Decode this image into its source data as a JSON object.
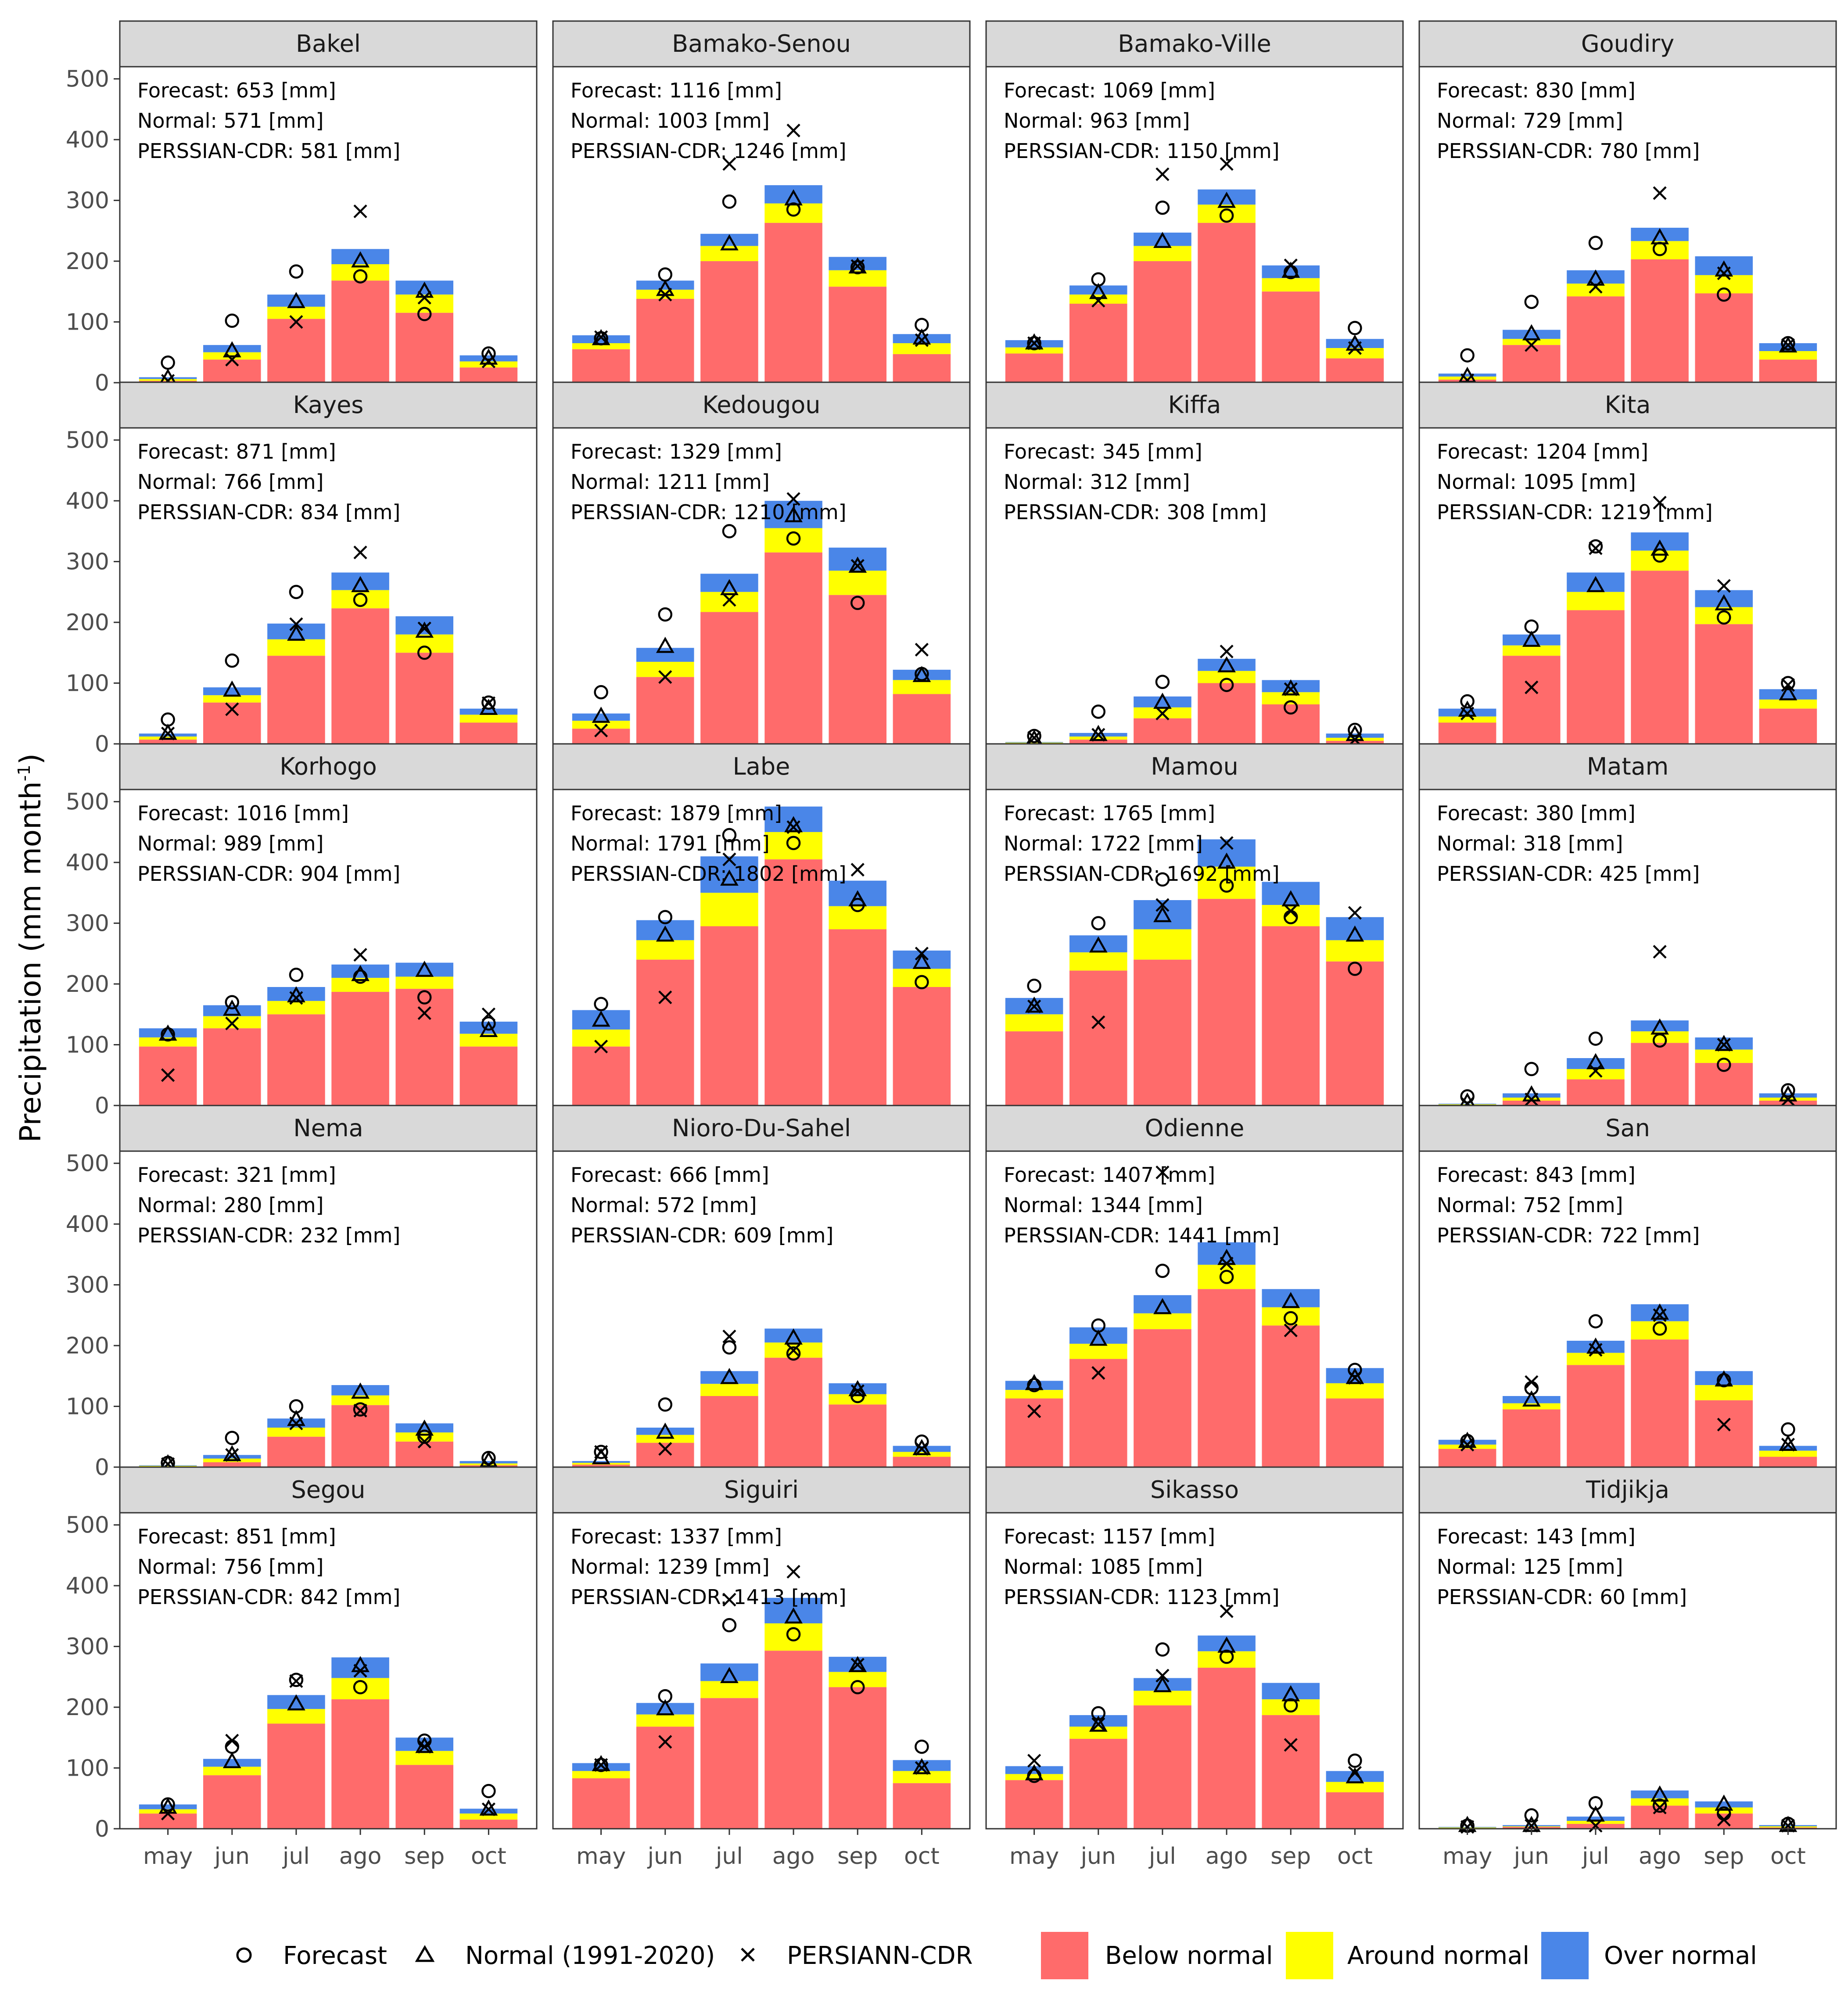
{
  "colors": {
    "below": "#FF6B6B",
    "around": "#FFFF00",
    "over": "#4A86E8",
    "strip_fill": "#D9D9D9",
    "panel_border": "#333333",
    "marker": "#000000"
  },
  "y_axis": {
    "title": "Precipitation (mm month",
    "title_superscript": "-1",
    "title_close": ")",
    "ticks": [
      "0",
      "100",
      "200",
      "300",
      "400",
      "500"
    ],
    "ylim": [
      0,
      520
    ]
  },
  "x_axis": {
    "ticks": [
      "may",
      "jun",
      "jul",
      "ago",
      "sep",
      "oct"
    ]
  },
  "legend": {
    "forecast_label": "Forecast",
    "normal_label": "Normal (1991-2020)",
    "persiann_label": "PERSIANN-CDR",
    "below_label": "Below normal",
    "around_label": "Around normal",
    "over_label": "Over normal"
  },
  "chart_data": {
    "type": "bar",
    "stacking": "stacked terciles (below/around/over) with point overlays (forecast, normal, PERSIANN-CDR)",
    "categories": [
      "may",
      "jun",
      "jul",
      "ago",
      "sep",
      "oct"
    ],
    "ylabel": "Precipitation (mm month-1)",
    "ylim": [
      0,
      520
    ],
    "panels": [
      {
        "station": "Bakel",
        "forecast_text": "Forecast: 653 [mm]",
        "normal_text": "Normal: 571 [mm]",
        "cdr_text": "PERSSIAN-CDR: 581 [mm]",
        "below": [
          3,
          38,
          105,
          168,
          115,
          25
        ],
        "around_top": [
          6,
          50,
          125,
          195,
          145,
          35
        ],
        "over_top": [
          9,
          62,
          145,
          220,
          168,
          45
        ],
        "forecast": [
          33,
          102,
          183,
          175,
          113,
          48
        ],
        "normal": [
          7,
          52,
          133,
          200,
          150,
          40
        ],
        "persiann": [
          3,
          38,
          100,
          282,
          140,
          35
        ]
      },
      {
        "station": "Bamako-Senou",
        "forecast_text": "Forecast: 1116 [mm]",
        "normal_text": "Normal: 1003 [mm]",
        "cdr_text": "PERSSIAN-CDR: 1246 [mm]",
        "below": [
          55,
          138,
          200,
          263,
          158,
          47
        ],
        "around_top": [
          65,
          153,
          225,
          295,
          185,
          65
        ],
        "over_top": [
          78,
          168,
          245,
          325,
          207,
          80
        ],
        "forecast": [
          73,
          178,
          298,
          285,
          190,
          95
        ],
        "normal": [
          72,
          153,
          228,
          302,
          190,
          73
        ],
        "persiann": [
          75,
          145,
          360,
          415,
          192,
          70
        ]
      },
      {
        "station": "Bamako-Ville",
        "forecast_text": "Forecast: 1069 [mm]",
        "normal_text": "Normal: 963 [mm]",
        "cdr_text": "PERSSIAN-CDR: 1150 [mm]",
        "below": [
          48,
          130,
          200,
          263,
          150,
          40
        ],
        "around_top": [
          58,
          145,
          225,
          293,
          172,
          57
        ],
        "over_top": [
          70,
          160,
          247,
          318,
          193,
          72
        ],
        "forecast": [
          65,
          170,
          288,
          275,
          182,
          90
        ],
        "normal": [
          65,
          148,
          232,
          298,
          183,
          63
        ],
        "persiann": [
          65,
          135,
          343,
          360,
          193,
          57
        ]
      },
      {
        "station": "Goudiry",
        "forecast_text": "Forecast: 830 [mm]",
        "normal_text": "Normal: 729 [mm]",
        "cdr_text": "PERSSIAN-CDR: 780 [mm]",
        "below": [
          5,
          62,
          142,
          203,
          147,
          38
        ],
        "around_top": [
          10,
          72,
          163,
          233,
          177,
          52
        ],
        "over_top": [
          15,
          87,
          185,
          255,
          208,
          65
        ],
        "forecast": [
          45,
          133,
          230,
          220,
          145,
          65
        ],
        "normal": [
          10,
          80,
          170,
          238,
          185,
          60
        ],
        "persiann": [
          4,
          62,
          158,
          312,
          180,
          62
        ]
      },
      {
        "station": "Kayes",
        "forecast_text": "Forecast: 871 [mm]",
        "normal_text": "Normal: 766 [mm]",
        "cdr_text": "PERSSIAN-CDR: 834 [mm]",
        "below": [
          7,
          68,
          145,
          223,
          150,
          35
        ],
        "around_top": [
          12,
          80,
          172,
          253,
          180,
          48
        ],
        "over_top": [
          17,
          93,
          198,
          282,
          210,
          58
        ],
        "forecast": [
          40,
          137,
          250,
          237,
          150,
          68
        ],
        "normal": [
          17,
          88,
          180,
          260,
          185,
          58
        ],
        "persiann": [
          17,
          57,
          197,
          315,
          190,
          67
        ]
      },
      {
        "station": "Kedougou",
        "forecast_text": "Forecast: 1329 [mm]",
        "normal_text": "Normal: 1211 [mm]",
        "cdr_text": "PERSSIAN-CDR: 1210 [mm]",
        "below": [
          25,
          110,
          217,
          315,
          245,
          82
        ],
        "around_top": [
          38,
          135,
          250,
          355,
          285,
          105
        ],
        "over_top": [
          50,
          158,
          280,
          400,
          323,
          122
        ],
        "forecast": [
          85,
          213,
          350,
          338,
          232,
          115
        ],
        "normal": [
          45,
          160,
          255,
          375,
          292,
          112
        ],
        "persiann": [
          22,
          110,
          237,
          403,
          293,
          155
        ]
      },
      {
        "station": "Kiffa",
        "forecast_text": "Forecast: 345 [mm]",
        "normal_text": "Normal: 312 [mm]",
        "cdr_text": "PERSSIAN-CDR: 308 [mm]",
        "below": [
          1,
          7,
          42,
          100,
          65,
          5
        ],
        "around_top": [
          2,
          12,
          60,
          120,
          85,
          10
        ],
        "over_top": [
          3,
          18,
          78,
          140,
          105,
          17
        ],
        "forecast": [
          13,
          53,
          102,
          97,
          60,
          23
        ],
        "normal": [
          7,
          15,
          68,
          128,
          90,
          15
        ],
        "persiann": [
          10,
          15,
          50,
          152,
          90,
          7
        ]
      },
      {
        "station": "Kita",
        "forecast_text": "Forecast: 1204 [mm]",
        "normal_text": "Normal: 1095 [mm]",
        "cdr_text": "PERSSIAN-CDR: 1219 [mm]",
        "below": [
          35,
          145,
          220,
          285,
          197,
          58
        ],
        "around_top": [
          45,
          162,
          250,
          318,
          225,
          73
        ],
        "over_top": [
          58,
          180,
          282,
          348,
          253,
          90
        ],
        "forecast": [
          70,
          193,
          325,
          310,
          208,
          100
        ],
        "normal": [
          55,
          170,
          260,
          320,
          230,
          82
        ],
        "persiann": [
          50,
          93,
          322,
          397,
          260,
          97
        ]
      },
      {
        "station": "Korhogo",
        "forecast_text": "Forecast: 1016 [mm]",
        "normal_text": "Normal: 989 [mm]",
        "cdr_text": "PERSSIAN-CDR: 904 [mm]",
        "below": [
          97,
          127,
          150,
          187,
          192,
          97
        ],
        "around_top": [
          112,
          147,
          172,
          210,
          212,
          118
        ],
        "over_top": [
          127,
          165,
          195,
          232,
          235,
          138
        ],
        "forecast": [
          117,
          170,
          215,
          212,
          178,
          135
        ],
        "normal": [
          117,
          158,
          180,
          215,
          222,
          123
        ],
        "persiann": [
          50,
          135,
          177,
          248,
          152,
          150
        ]
      },
      {
        "station": "Labe",
        "forecast_text": "Forecast: 1879 [mm]",
        "normal_text": "Normal: 1791 [mm]",
        "cdr_text": "PERSSIAN-CDR: 1802 [mm]",
        "below": [
          97,
          240,
          295,
          405,
          290,
          195
        ],
        "around_top": [
          125,
          272,
          350,
          450,
          328,
          225
        ],
        "over_top": [
          157,
          305,
          410,
          492,
          370,
          255
        ],
        "forecast": [
          167,
          310,
          445,
          432,
          330,
          203
        ],
        "normal": [
          140,
          280,
          372,
          460,
          338,
          235
        ],
        "persiann": [
          97,
          178,
          405,
          458,
          388,
          250
        ]
      },
      {
        "station": "Mamou",
        "forecast_text": "Forecast: 1765 [mm]",
        "normal_text": "Normal: 1722 [mm]",
        "cdr_text": "PERSSIAN-CDR: 1692 [mm]",
        "below": [
          122,
          222,
          240,
          340,
          295,
          237
        ],
        "around_top": [
          150,
          252,
          290,
          393,
          330,
          272
        ],
        "over_top": [
          177,
          280,
          338,
          438,
          368,
          310
        ],
        "forecast": [
          197,
          300,
          372,
          362,
          310,
          225
        ],
        "normal": [
          163,
          262,
          312,
          400,
          338,
          280
        ],
        "persiann": [
          163,
          137,
          330,
          432,
          320,
          317
        ]
      },
      {
        "station": "Matam",
        "forecast_text": "Forecast: 380 [mm]",
        "normal_text": "Normal: 318 [mm]",
        "cdr_text": "PERSSIAN-CDR: 425 [mm]",
        "below": [
          1,
          8,
          43,
          103,
          70,
          8
        ],
        "around_top": [
          2,
          13,
          60,
          122,
          92,
          13
        ],
        "over_top": [
          3,
          20,
          78,
          140,
          112,
          20
        ],
        "forecast": [
          15,
          60,
          110,
          107,
          67,
          25
        ],
        "normal": [
          5,
          17,
          70,
          127,
          100,
          17
        ],
        "persiann": [
          3,
          10,
          57,
          253,
          100,
          10
        ]
      },
      {
        "station": "Nema",
        "forecast_text": "Forecast: 321 [mm]",
        "normal_text": "Normal: 280 [mm]",
        "cdr_text": "PERSSIAN-CDR: 232 [mm]",
        "below": [
          1,
          8,
          50,
          102,
          42,
          3
        ],
        "around_top": [
          2,
          14,
          65,
          118,
          57,
          6
        ],
        "over_top": [
          3,
          20,
          80,
          135,
          72,
          10
        ],
        "forecast": [
          7,
          48,
          100,
          95,
          50,
          15
        ],
        "normal": [
          5,
          20,
          78,
          123,
          62,
          10
        ],
        "persiann": [
          5,
          20,
          72,
          93,
          42,
          3
        ]
      },
      {
        "station": "Nioro-Du-Sahel",
        "forecast_text": "Forecast: 666 [mm]",
        "normal_text": "Normal: 572 [mm]",
        "cdr_text": "PERSSIAN-CDR: 609 [mm]",
        "below": [
          4,
          40,
          117,
          180,
          103,
          17
        ],
        "around_top": [
          7,
          53,
          137,
          205,
          120,
          25
        ],
        "over_top": [
          10,
          65,
          158,
          228,
          138,
          35
        ],
        "forecast": [
          25,
          103,
          197,
          187,
          117,
          42
        ],
        "normal": [
          15,
          57,
          147,
          212,
          127,
          30
        ],
        "persiann": [
          25,
          30,
          215,
          192,
          125,
          30
        ]
      },
      {
        "station": "Odienne",
        "forecast_text": "Forecast: 1407 [mm]",
        "normal_text": "Normal: 1344 [mm]",
        "cdr_text": "PERSSIAN-CDR: 1441 [mm]",
        "below": [
          113,
          178,
          227,
          293,
          233,
          113
        ],
        "around_top": [
          127,
          203,
          253,
          333,
          263,
          138
        ],
        "over_top": [
          142,
          230,
          283,
          370,
          293,
          163
        ],
        "forecast": [
          135,
          233,
          323,
          313,
          245,
          160
        ],
        "normal": [
          137,
          210,
          262,
          343,
          272,
          147
        ],
        "persiann": [
          92,
          155,
          485,
          335,
          225,
          147
        ]
      },
      {
        "station": "San",
        "forecast_text": "Forecast: 843 [mm]",
        "normal_text": "Normal: 752 [mm]",
        "cdr_text": "PERSSIAN-CDR: 722 [mm]",
        "below": [
          30,
          95,
          168,
          210,
          110,
          17
        ],
        "around_top": [
          37,
          105,
          188,
          240,
          135,
          27
        ],
        "over_top": [
          45,
          117,
          208,
          268,
          158,
          35
        ],
        "forecast": [
          43,
          130,
          240,
          228,
          143,
          62
        ],
        "normal": [
          42,
          110,
          197,
          253,
          143,
          37
        ],
        "persiann": [
          37,
          140,
          193,
          250,
          70,
          37
        ]
      },
      {
        "station": "Segou",
        "forecast_text": "Forecast: 851 [mm]",
        "normal_text": "Normal: 756 [mm]",
        "cdr_text": "PERSSIAN-CDR: 842 [mm]",
        "below": [
          25,
          88,
          173,
          213,
          105,
          15
        ],
        "around_top": [
          32,
          102,
          197,
          248,
          128,
          25
        ],
        "over_top": [
          40,
          115,
          220,
          282,
          150,
          33
        ],
        "forecast": [
          40,
          135,
          245,
          233,
          145,
          62
        ],
        "normal": [
          35,
          110,
          205,
          268,
          135,
          32
        ],
        "persiann": [
          25,
          145,
          243,
          260,
          135,
          32
        ]
      },
      {
        "station": "Siguiri",
        "forecast_text": "Forecast: 1337 [mm]",
        "normal_text": "Normal: 1239 [mm]",
        "cdr_text": "PERSSIAN-CDR: 1413 [mm]",
        "below": [
          83,
          168,
          215,
          293,
          233,
          75
        ],
        "around_top": [
          95,
          188,
          243,
          338,
          258,
          95
        ],
        "over_top": [
          108,
          207,
          272,
          380,
          283,
          113
        ],
        "forecast": [
          105,
          218,
          335,
          320,
          233,
          135
        ],
        "normal": [
          105,
          197,
          250,
          348,
          268,
          100
        ],
        "persiann": [
          105,
          143,
          377,
          423,
          270,
          100
        ]
      },
      {
        "station": "Sikasso",
        "forecast_text": "Forecast: 1157 [mm]",
        "normal_text": "Normal: 1085 [mm]",
        "cdr_text": "PERSSIAN-CDR: 1123 [mm]",
        "below": [
          80,
          148,
          203,
          265,
          187,
          60
        ],
        "around_top": [
          90,
          168,
          227,
          292,
          213,
          77
        ],
        "over_top": [
          103,
          187,
          248,
          318,
          240,
          95
        ],
        "forecast": [
          87,
          190,
          295,
          283,
          203,
          112
        ],
        "normal": [
          90,
          170,
          235,
          300,
          220,
          85
        ],
        "persiann": [
          112,
          172,
          252,
          358,
          138,
          92
        ]
      },
      {
        "station": "Tidjikja",
        "forecast_text": "Forecast: 143 [mm]",
        "normal_text": "Normal: 125 [mm]",
        "cdr_text": "PERSSIAN-CDR: 60 [mm]",
        "below": [
          1,
          3,
          8,
          38,
          25,
          2
        ],
        "around_top": [
          2,
          4,
          13,
          50,
          35,
          4
        ],
        "over_top": [
          3,
          6,
          20,
          63,
          45,
          6
        ],
        "forecast": [
          5,
          22,
          42,
          38,
          25,
          8
        ],
        "normal": [
          5,
          5,
          22,
          55,
          40,
          5
        ],
        "persiann": [
          3,
          5,
          5,
          35,
          15,
          5
        ]
      }
    ]
  }
}
